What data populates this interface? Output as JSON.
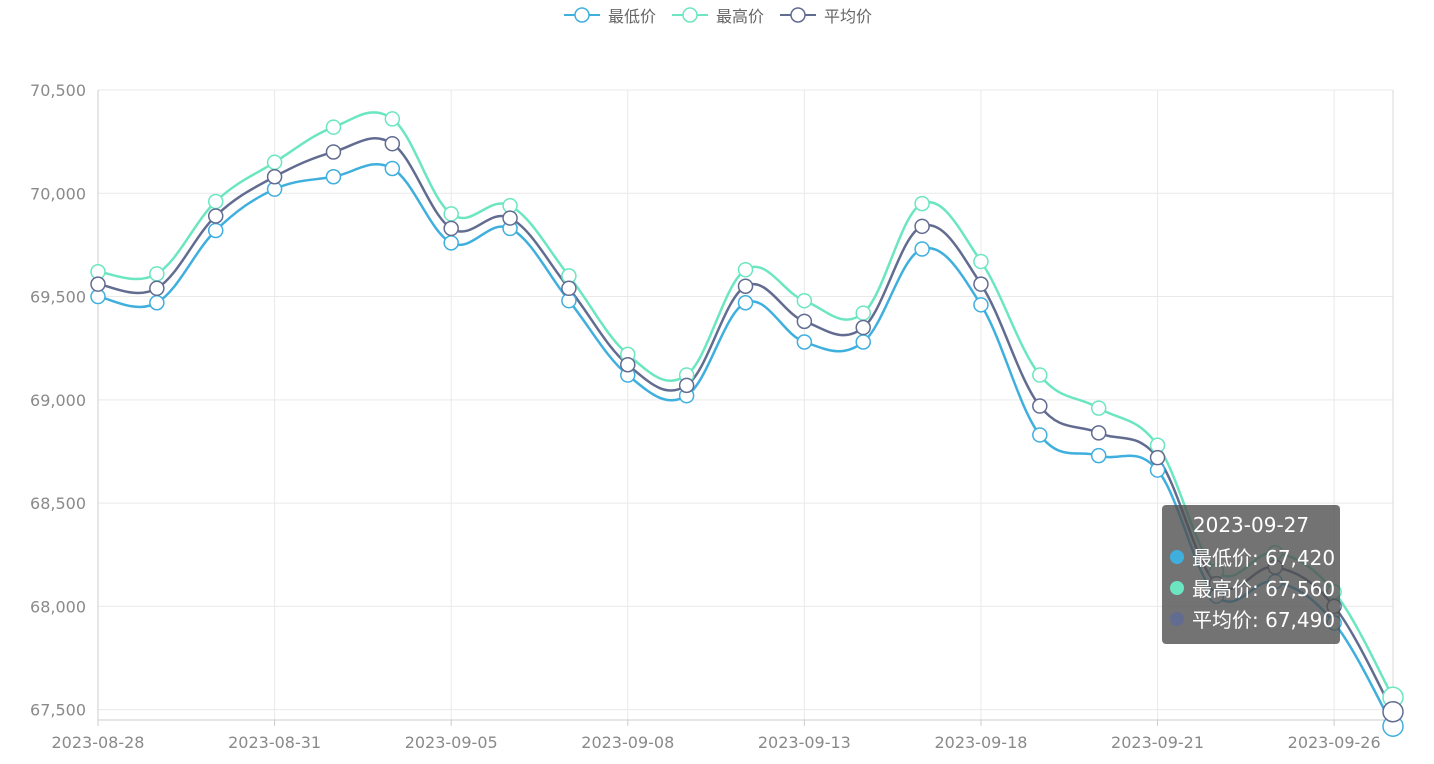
{
  "chart_data": {
    "type": "line",
    "smooth": true,
    "colors": [
      "#3fafde",
      "#6be6c1",
      "#626c91"
    ],
    "legend": {
      "placement": "top-center",
      "items": [
        "最低价",
        "最高价",
        "平均价"
      ]
    },
    "x": [
      "2023-08-28",
      "2023-08-29",
      "2023-08-30",
      "2023-08-31",
      "2023-09-01",
      "2023-09-04",
      "2023-09-05",
      "2023-09-06",
      "2023-09-07",
      "2023-09-08",
      "2023-09-11",
      "2023-09-12",
      "2023-09-13",
      "2023-09-14",
      "2023-09-15",
      "2023-09-18",
      "2023-09-19",
      "2023-09-20",
      "2023-09-21",
      "2023-09-22",
      "2023-09-25",
      "2023-09-26",
      "2023-09-27"
    ],
    "x_tick_labels": [
      "2023-08-28",
      "2023-08-31",
      "2023-09-05",
      "2023-09-08",
      "2023-09-13",
      "2023-09-18",
      "2023-09-21",
      "2023-09-26"
    ],
    "x_tick_dates": [
      "2023-08-28",
      "2023-08-31",
      "2023-09-05",
      "2023-09-08",
      "2023-09-13",
      "2023-09-18",
      "2023-09-21",
      "2023-09-26"
    ],
    "series": [
      {
        "name": "最低价",
        "values": [
          69500,
          69470,
          69820,
          70020,
          70080,
          70120,
          69760,
          69830,
          69480,
          69120,
          69020,
          69470,
          69280,
          69280,
          69730,
          69460,
          68830,
          68730,
          68660,
          68050,
          68120,
          67920,
          67420
        ]
      },
      {
        "name": "最高价",
        "values": [
          69620,
          69610,
          69960,
          70150,
          70320,
          70360,
          69900,
          69940,
          69600,
          69220,
          69120,
          69630,
          69480,
          69420,
          69950,
          69670,
          69120,
          68960,
          68780,
          68170,
          68260,
          68070,
          67560
        ]
      },
      {
        "name": "平均价",
        "values": [
          69560,
          69540,
          69890,
          70080,
          70200,
          70240,
          69830,
          69880,
          69540,
          69170,
          69070,
          69550,
          69380,
          69350,
          69840,
          69560,
          68970,
          68840,
          68720,
          68110,
          68190,
          68000,
          67490
        ]
      }
    ],
    "y_ticks": [
      "67,500",
      "68,000",
      "68,500",
      "69,000",
      "69,500",
      "70,000",
      "70,500"
    ],
    "ylim": [
      67450,
      70500
    ],
    "grid": true,
    "tooltip": {
      "date": "2023-09-27",
      "rows": [
        {
          "label": "最低价: 67,420",
          "color": "#3fafde"
        },
        {
          "label": "最高价: 67,560",
          "color": "#6be6c1"
        },
        {
          "label": "平均价: 67,490",
          "color": "#626c91"
        }
      ]
    }
  }
}
